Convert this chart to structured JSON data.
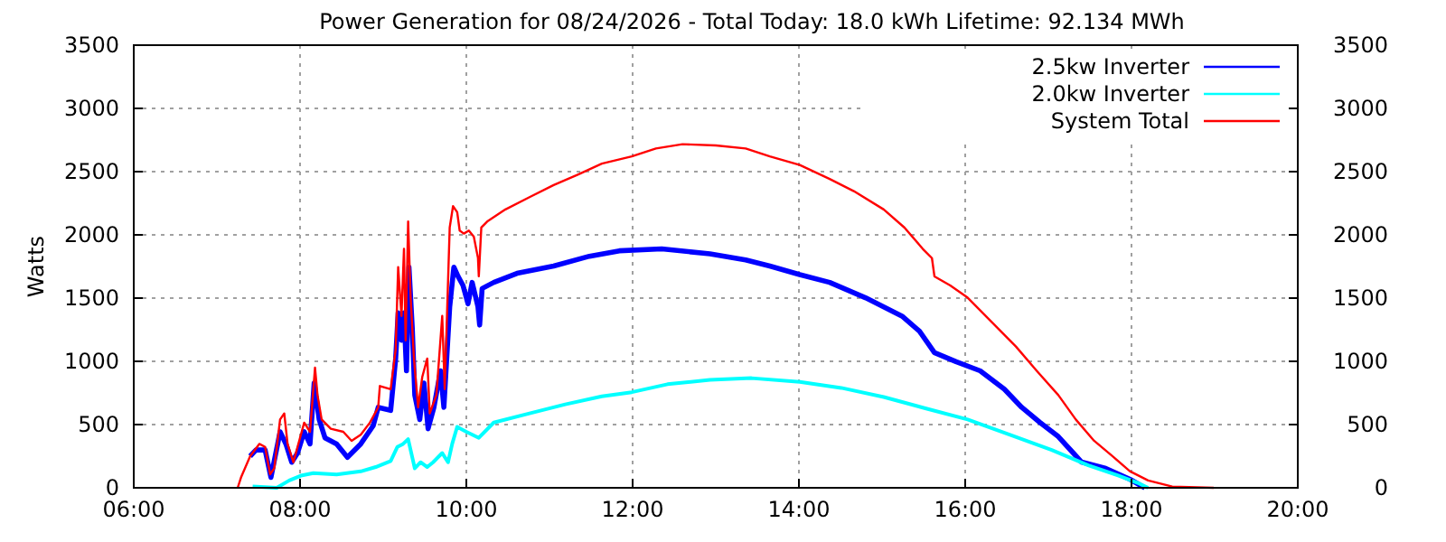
{
  "chart_data": {
    "type": "line",
    "title": "Power Generation for 08/24/2026 - Total Today: 18.0 kWh   Lifetime: 92.134 MWh",
    "ylabel": "Watts",
    "xlim": [
      6,
      20
    ],
    "xticks": [
      {
        "value": 6,
        "label": "06:00"
      },
      {
        "value": 8,
        "label": "08:00"
      },
      {
        "value": 10,
        "label": "10:00"
      },
      {
        "value": 12,
        "label": "12:00"
      },
      {
        "value": 14,
        "label": "14:00"
      },
      {
        "value": 16,
        "label": "16:00"
      },
      {
        "value": 18,
        "label": "18:00"
      },
      {
        "value": 20,
        "label": "20:00"
      }
    ],
    "ylim": [
      0,
      3500
    ],
    "yticks": [
      0,
      500,
      1000,
      1500,
      2000,
      2500,
      3000,
      3500
    ],
    "y2lim": [
      0,
      3500
    ],
    "y2ticks": [
      0,
      500,
      1000,
      1500,
      2000,
      2500,
      3000,
      3500
    ],
    "grid": true,
    "legend": "top right",
    "line_style": "solid",
    "marker": "none",
    "series": [
      {
        "name": "2.5kw Inverter",
        "color": "#0000ff",
        "x": [
          7.4,
          7.47,
          7.58,
          7.65,
          7.76,
          7.83,
          7.9,
          7.97,
          8.05,
          8.12,
          8.17,
          8.23,
          8.3,
          8.44,
          8.57,
          8.73,
          8.88,
          8.94,
          9.09,
          9.15,
          9.18,
          9.22,
          9.25,
          9.28,
          9.31,
          9.35,
          9.38,
          9.44,
          9.49,
          9.54,
          9.61,
          9.69,
          9.73,
          9.8,
          9.85,
          9.9,
          9.96,
          10.02,
          10.07,
          10.14,
          10.16,
          10.19,
          10.33,
          10.61,
          11.05,
          11.48,
          11.84,
          12.35,
          12.93,
          13.36,
          13.65,
          14.01,
          14.37,
          14.8,
          15.24,
          15.45,
          15.63,
          15.89,
          16.18,
          16.47,
          16.68,
          16.9,
          17.12,
          17.3,
          17.4,
          17.69,
          17.98,
          18.16
        ],
        "values": [
          250,
          299,
          299,
          82,
          443,
          347,
          202,
          275,
          443,
          347,
          829,
          540,
          395,
          347,
          241,
          347,
          491,
          636,
          612,
          1022,
          1383,
          1166,
          1383,
          925,
          1745,
          1262,
          733,
          540,
          829,
          467,
          636,
          925,
          636,
          1431,
          1745,
          1672,
          1600,
          1455,
          1624,
          1431,
          1287,
          1576,
          1624,
          1696,
          1754,
          1831,
          1874,
          1889,
          1850,
          1802,
          1754,
          1686,
          1624,
          1503,
          1358,
          1238,
          1069,
          997,
          925,
          780,
          636,
          516,
          405,
          275,
          203,
          154,
          68,
          0
        ]
      },
      {
        "name": "2.0kw Inverter",
        "color": "#00ffff",
        "x": [
          7.43,
          7.72,
          7.87,
          8.01,
          8.16,
          8.44,
          8.73,
          8.91,
          9.09,
          9.17,
          9.24,
          9.3,
          9.38,
          9.45,
          9.53,
          9.6,
          9.71,
          9.78,
          9.83,
          9.89,
          10,
          10.15,
          10.33,
          10.76,
          11.19,
          11.63,
          11.99,
          12.42,
          12.93,
          13.43,
          14.01,
          14.51,
          15.02,
          15.53,
          16.03,
          16.54,
          17.04,
          17.48,
          17.84,
          18.09,
          18.2
        ],
        "values": [
          10,
          0,
          58,
          96,
          116,
          106,
          130,
          164,
          212,
          323,
          347,
          385,
          154,
          202,
          164,
          202,
          275,
          202,
          347,
          482,
          443,
          395,
          516,
          588,
          660,
          723,
          756,
          819,
          853,
          867,
          838,
          790,
          718,
          627,
          540,
          419,
          299,
          178,
          97,
          34,
          0
        ]
      },
      {
        "name": "System Total",
        "color": "#ff0000",
        "x": [
          7.25,
          7.29,
          7.4,
          7.51,
          7.58,
          7.64,
          7.69,
          7.76,
          7.81,
          7.85,
          7.92,
          7.97,
          8.05,
          8.12,
          8.18,
          8.21,
          8.26,
          8.37,
          8.52,
          8.62,
          8.73,
          8.84,
          8.94,
          8.96,
          9.09,
          9.15,
          9.18,
          9.22,
          9.25,
          9.27,
          9.3,
          9.33,
          9.37,
          9.42,
          9.47,
          9.53,
          9.56,
          9.64,
          9.71,
          9.74,
          9.8,
          9.84,
          9.89,
          9.92,
          9.97,
          10.03,
          10.09,
          10.14,
          10.15,
          10.18,
          10.25,
          10.47,
          10.76,
          11.05,
          11.34,
          11.63,
          11.99,
          12.28,
          12.6,
          13,
          13.36,
          13.65,
          14.01,
          14.37,
          14.66,
          15.02,
          15.27,
          15.49,
          15.6,
          15.63,
          15.82,
          16.03,
          16.32,
          16.61,
          16.86,
          17.12,
          17.33,
          17.55,
          17.77,
          17.98,
          18.2,
          18.49,
          18.99
        ],
        "values": [
          0,
          82,
          250,
          347,
          323,
          106,
          154,
          540,
          588,
          347,
          202,
          323,
          515,
          443,
          950,
          733,
          540,
          467,
          443,
          371,
          419,
          515,
          636,
          805,
          780,
          1094,
          1745,
          1359,
          1889,
          1166,
          2106,
          1504,
          1022,
          636,
          877,
          1022,
          588,
          733,
          1359,
          780,
          2058,
          2227,
          2179,
          2034,
          2010,
          2034,
          1986,
          1817,
          1672,
          2058,
          2105,
          2201,
          2298,
          2394,
          2476,
          2563,
          2621,
          2683,
          2717,
          2707,
          2683,
          2621,
          2553,
          2442,
          2346,
          2201,
          2057,
          1889,
          1816,
          1672,
          1600,
          1503,
          1310,
          1117,
          925,
          733,
          540,
          372,
          251,
          131,
          58,
          10,
          0
        ]
      }
    ]
  }
}
